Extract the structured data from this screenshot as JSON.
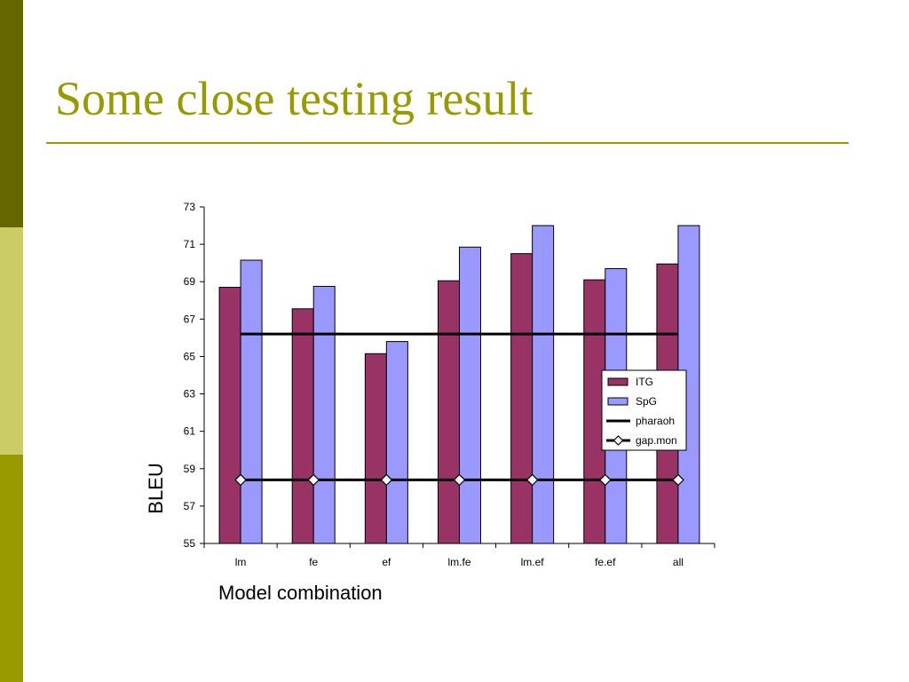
{
  "slide": {
    "title": "Some close testing result",
    "colors": {
      "strip_top": "#666600",
      "strip_middle": "#cccc66",
      "strip_bottom": "#999900",
      "title": "#999900"
    }
  },
  "chart_data": {
    "type": "bar",
    "title": "",
    "xlabel": "Model combination",
    "ylabel": "BLEU",
    "ylim": [
      55,
      73
    ],
    "yticks": [
      55,
      57,
      59,
      61,
      63,
      65,
      67,
      69,
      71,
      73
    ],
    "grid": false,
    "legend_position": "right",
    "categories": [
      "lm",
      "fe",
      "ef",
      "lm.fe",
      "lm.ef",
      "fe.ef",
      "all"
    ],
    "series": [
      {
        "name": "ITG",
        "kind": "bar",
        "color": "#993366",
        "values": [
          68.7,
          67.55,
          65.15,
          69.05,
          70.5,
          69.1,
          69.95
        ]
      },
      {
        "name": "SpG",
        "kind": "bar",
        "color": "#9999ff",
        "values": [
          70.15,
          68.75,
          65.8,
          70.85,
          72.0,
          69.7,
          72.0
        ]
      },
      {
        "name": "pharaoh",
        "kind": "line",
        "color": "#000000",
        "values": [
          66.2,
          66.2,
          66.2,
          66.2,
          66.2,
          66.2,
          66.2
        ]
      },
      {
        "name": "gap.mon",
        "kind": "line-marker",
        "marker": "diamond",
        "color": "#000000",
        "values": [
          58.4,
          58.4,
          58.4,
          58.4,
          58.4,
          58.4,
          58.4
        ]
      }
    ]
  }
}
